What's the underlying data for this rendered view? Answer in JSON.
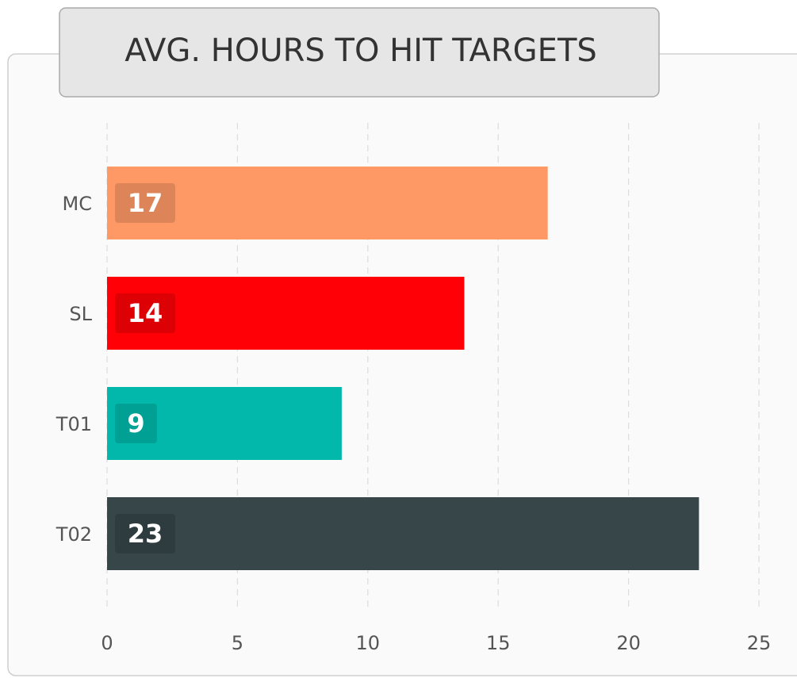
{
  "chart_data": {
    "type": "bar",
    "orientation": "horizontal",
    "title": "AVG. HOURS TO HIT TARGETS",
    "categories": [
      "MC",
      "SL",
      "T01",
      "T02"
    ],
    "values": [
      16.9,
      13.7,
      9.0,
      22.7
    ],
    "value_labels": [
      "17",
      "14",
      "9",
      "23"
    ],
    "colors": [
      "#fe9966",
      "#fe0006",
      "#02b8ab",
      "#374649"
    ],
    "xlim": [
      0,
      25
    ],
    "xticks": [
      0,
      5,
      10,
      15,
      20,
      25
    ],
    "grid": true
  }
}
